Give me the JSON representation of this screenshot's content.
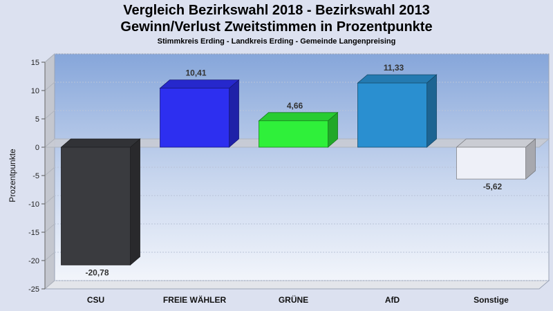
{
  "chart_data": {
    "type": "bar",
    "title": "Vergleich Bezirkswahl 2018 - Bezirkswahl 2013",
    "subtitle_main": "Gewinn/Verlust Zweitstimmen in Prozentpunkte",
    "subtitle": "Stimmkreis Erding - Landkreis Erding - Gemeinde Langenpreising",
    "xlabel": "",
    "ylabel": "Prozentpunkte",
    "ylim": [
      -25,
      15
    ],
    "yticks": [
      15,
      10,
      5,
      0,
      -5,
      -10,
      -15,
      -20,
      -25
    ],
    "categories": [
      "CSU",
      "FREIE WÄHLER",
      "GRÜNE",
      "AfD",
      "Sonstige"
    ],
    "values": [
      -20.78,
      10.41,
      4.66,
      11.33,
      -5.62
    ],
    "value_labels": [
      "-20,78",
      "10,41",
      "4,66",
      "11,33",
      "-5,62"
    ],
    "colors": [
      "#3a3b3f",
      "#2d2ff0",
      "#2ff03a",
      "#2a8fd0",
      "#eef0f8"
    ],
    "grid": true,
    "legend": "none"
  }
}
